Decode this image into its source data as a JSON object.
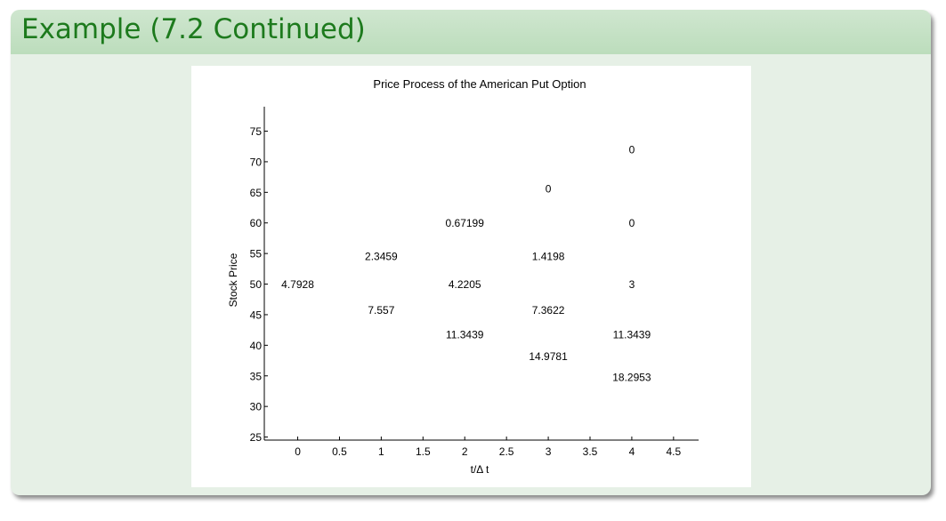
{
  "slide": {
    "title": "Example (7.2 Continued)"
  },
  "colors": {
    "frame_background": "#e6f0e6",
    "title_bar": "#c4e0c4",
    "title_text": "#1d7a1d",
    "plot_background": "#ffffff",
    "axis": "#000000"
  },
  "chart_data": {
    "type": "scatter",
    "title": "Price Process of the American Put Option",
    "xlabel": "t/Δ t",
    "ylabel": "Stock Price",
    "xlim": [
      -0.4,
      4.8
    ],
    "ylim": [
      24.5,
      79
    ],
    "xticks": [
      0,
      0.5,
      1,
      1.5,
      2,
      2.5,
      3,
      3.5,
      4,
      4.5
    ],
    "xtick_labels": [
      "0",
      "0.5",
      "1",
      "1.5",
      "2",
      "2.5",
      "3",
      "3.5",
      "4",
      "4.5"
    ],
    "yticks": [
      25,
      30,
      35,
      40,
      45,
      50,
      55,
      60,
      65,
      70,
      75
    ],
    "ytick_labels": [
      "25",
      "30",
      "35",
      "40",
      "45",
      "50",
      "55",
      "60",
      "65",
      "70",
      "75"
    ],
    "grid": false,
    "points": [
      {
        "x": 0,
        "y": 50,
        "label": "4.7928"
      },
      {
        "x": 1,
        "y": 54.6,
        "label": "2.3459"
      },
      {
        "x": 1,
        "y": 45.8,
        "label": "7.557"
      },
      {
        "x": 2,
        "y": 60,
        "label": "0.67199"
      },
      {
        "x": 2,
        "y": 50,
        "label": "4.2205"
      },
      {
        "x": 2,
        "y": 41.8,
        "label": "11.3439"
      },
      {
        "x": 3,
        "y": 65.6,
        "label": "0"
      },
      {
        "x": 3,
        "y": 54.6,
        "label": "1.4198"
      },
      {
        "x": 3,
        "y": 45.8,
        "label": "7.3622"
      },
      {
        "x": 3,
        "y": 38.2,
        "label": "14.9781"
      },
      {
        "x": 4,
        "y": 72,
        "label": "0"
      },
      {
        "x": 4,
        "y": 60,
        "label": "0"
      },
      {
        "x": 4,
        "y": 50,
        "label": "3"
      },
      {
        "x": 4,
        "y": 41.8,
        "label": "11.3439"
      },
      {
        "x": 4,
        "y": 34.8,
        "label": "18.2953"
      }
    ]
  }
}
